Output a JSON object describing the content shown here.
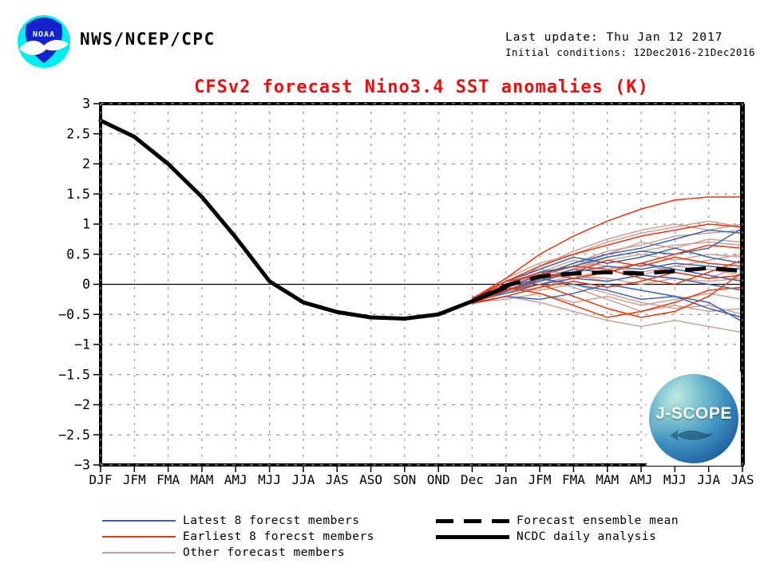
{
  "header": {
    "org": "NWS/NCEP/CPC",
    "last_update": "Last update: Thu Jan 12 2017",
    "initial_conditions": "Initial conditions: 12Dec2016-21Dec2016"
  },
  "title": "CFSv2 forecast Nino3.4 SST anomalies (K)",
  "logos": {
    "noaa": "NOAA",
    "jscope": "J-SCOPE"
  },
  "colors": {
    "title": "#e81010",
    "latest": "#3a66b4",
    "earliest": "#e8380e",
    "other": "#cfa098",
    "analysis": "#000000",
    "mean": "#000000",
    "grid": "#979797",
    "noaa_blue": "#1322cc",
    "noaa_cyan": "#00eeee"
  },
  "legend": {
    "left": [
      {
        "label": "Latest 8 forecst members",
        "color_key": "latest"
      },
      {
        "label": "Earliest 8 forecst members",
        "color_key": "earliest"
      },
      {
        "label": "Other forecast members",
        "color_key": "other"
      }
    ],
    "right": [
      {
        "label": "Forecast ensemble mean",
        "style": "thick-dashed"
      },
      {
        "label": "NCDC daily analysis",
        "style": "thick-solid"
      }
    ]
  },
  "chart_data": {
    "type": "line",
    "x_labels": [
      "DJF",
      "JFM",
      "FMA",
      "MAM",
      "AMJ",
      "MJJ",
      "JJA",
      "JAS",
      "ASO",
      "SON",
      "OND",
      "Dec",
      "Jan",
      "JFM",
      "FMA",
      "MAM",
      "AMJ",
      "MJJ",
      "JJA",
      "JAS"
    ],
    "ylim": [
      -3,
      3
    ],
    "y_tick_step": 0.5,
    "grid": true,
    "forecast_start_index": 11,
    "analysis": {
      "name": "NCDC daily analysis",
      "start_index": 0,
      "values": [
        2.72,
        2.45,
        2.0,
        1.45,
        0.78,
        0.05,
        -0.3,
        -0.46,
        -0.55,
        -0.57,
        -0.5,
        -0.28,
        -0.05
      ]
    },
    "ensemble_mean": {
      "name": "Forecast ensemble mean",
      "start_index": 11,
      "values": [
        -0.28,
        -0.02,
        0.13,
        0.18,
        0.2,
        0.18,
        0.22,
        0.27,
        0.22
      ]
    },
    "members": {
      "latest8": [
        [
          -0.28,
          -0.05,
          0.15,
          0.35,
          0.5,
          0.6,
          0.75,
          0.9,
          0.85
        ],
        [
          -0.25,
          0.0,
          0.2,
          0.3,
          0.45,
          0.55,
          0.5,
          0.6,
          0.93
        ],
        [
          -0.3,
          -0.1,
          0.05,
          0.2,
          0.3,
          0.25,
          0.35,
          0.3,
          0.25
        ],
        [
          -0.26,
          -0.15,
          0.0,
          0.1,
          0.05,
          0.15,
          0.1,
          0.0,
          -0.1
        ],
        [
          -0.32,
          -0.2,
          -0.25,
          -0.15,
          0.0,
          -0.1,
          -0.2,
          -0.4,
          -0.55
        ],
        [
          -0.27,
          -0.05,
          0.1,
          0.0,
          -0.1,
          -0.25,
          -0.2,
          -0.3,
          -0.62
        ],
        [
          -0.24,
          0.05,
          0.25,
          0.45,
          0.35,
          0.45,
          0.6,
          0.45,
          0.35
        ],
        [
          -0.29,
          -0.12,
          0.08,
          0.25,
          0.2,
          0.35,
          0.25,
          0.15,
          0.05
        ]
      ],
      "earliest8": [
        [
          -0.24,
          0.1,
          0.5,
          0.8,
          1.05,
          1.25,
          1.4,
          1.45,
          1.45
        ],
        [
          -0.26,
          0.05,
          0.3,
          0.5,
          0.65,
          0.8,
          0.9,
          1.0,
          0.95
        ],
        [
          -0.28,
          0.0,
          0.2,
          0.1,
          0.2,
          0.35,
          0.5,
          0.65,
          0.6
        ],
        [
          -0.32,
          -0.1,
          0.0,
          -0.2,
          -0.4,
          -0.55,
          -0.45,
          -0.2,
          0.2
        ],
        [
          -0.3,
          -0.05,
          -0.15,
          -0.35,
          -0.55,
          -0.45,
          -0.3,
          -0.1,
          -0.05
        ],
        [
          -0.23,
          0.05,
          0.15,
          0.3,
          0.25,
          0.1,
          0.0,
          0.2,
          0.4
        ],
        [
          -0.27,
          -0.1,
          0.1,
          0.2,
          0.4,
          0.3,
          0.45,
          0.35,
          0.3
        ],
        [
          -0.31,
          -0.2,
          -0.05,
          0.05,
          -0.05,
          0.05,
          0.2,
          0.1,
          0.15
        ]
      ],
      "other": [
        [
          -0.26,
          -0.05,
          0.3,
          0.55,
          0.75,
          0.9,
          1.0,
          0.9,
          1.0
        ],
        [
          -0.24,
          0.1,
          0.35,
          0.5,
          0.7,
          0.85,
          0.95,
          1.05,
          0.95
        ],
        [
          -0.27,
          0.0,
          0.15,
          0.35,
          0.55,
          0.65,
          0.8,
          0.85,
          0.9
        ],
        [
          -0.3,
          -0.15,
          0.05,
          0.25,
          0.4,
          0.5,
          0.4,
          0.5,
          0.45
        ],
        [
          -0.25,
          -0.05,
          0.2,
          0.4,
          0.3,
          0.2,
          0.3,
          0.4,
          0.5
        ],
        [
          -0.29,
          -0.1,
          0.0,
          0.15,
          0.1,
          0.0,
          0.1,
          0.05,
          0.1
        ],
        [
          -0.23,
          -0.05,
          -0.1,
          0.0,
          -0.15,
          -0.3,
          -0.4,
          -0.35,
          -0.5
        ],
        [
          -0.31,
          -0.2,
          -0.3,
          -0.45,
          -0.6,
          -0.7,
          -0.6,
          -0.7,
          -0.8
        ],
        [
          -0.26,
          -0.1,
          0.1,
          -0.05,
          -0.25,
          -0.45,
          -0.35,
          -0.45,
          -0.4
        ],
        [
          -0.22,
          0.0,
          0.25,
          0.15,
          0.05,
          0.15,
          0.3,
          0.25,
          0.15
        ],
        [
          -0.28,
          -0.15,
          -0.05,
          0.1,
          0.25,
          0.35,
          0.2,
          0.1,
          0.3
        ],
        [
          -0.25,
          0.05,
          0.1,
          0.25,
          0.45,
          0.55,
          0.65,
          0.7,
          0.65
        ],
        [
          -0.3,
          -0.25,
          -0.15,
          -0.3,
          -0.2,
          -0.35,
          -0.25,
          -0.15,
          -0.25
        ],
        [
          -0.24,
          -0.02,
          0.18,
          0.3,
          0.5,
          0.7,
          0.6,
          0.75,
          0.7
        ]
      ]
    }
  }
}
